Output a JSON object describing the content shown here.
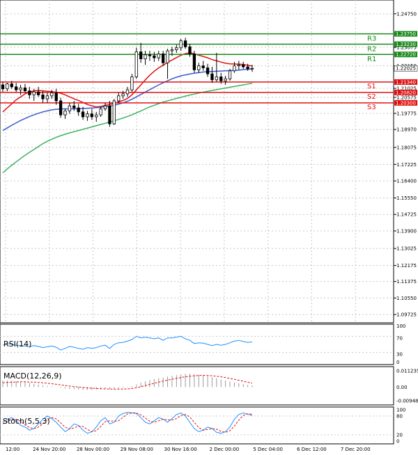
{
  "chart_data": {
    "type": "candlestick",
    "price_axis": {
      "ylim": [
        1.0945,
        1.253
      ],
      "ticks": [
        "1.24750",
        "1.23075",
        "1.22150",
        "1.21025",
        "1.20575",
        "1.19775",
        "1.18970",
        "1.18075",
        "1.17225",
        "1.16400",
        "1.15550",
        "1.14725",
        "1.13900",
        "1.13025",
        "1.12175",
        "1.11375",
        "1.10550",
        "1.09725"
      ],
      "tick_values": [
        1.2475,
        1.23075,
        1.2215,
        1.21025,
        1.20575,
        1.19775,
        1.1897,
        1.18075,
        1.17225,
        1.164,
        1.1555,
        1.14725,
        1.139,
        1.13025,
        1.12175,
        1.11375,
        1.1055,
        1.09725
      ]
    },
    "x_tick_labels": [
      "12:00",
      "24 Nov 20:00",
      "28 Nov 00:00",
      "29 Nov 08:00",
      "30 Nov 16:00",
      "2 Dec 00:00",
      "5 Dec 04:00",
      "6 Dec 12:00",
      "7 Dec 20:00"
    ],
    "levels": [
      {
        "name": "R3",
        "value": 1.2375,
        "tag": "1.23750",
        "kind": "resistance",
        "color": "#1a8a1a"
      },
      {
        "name": "R2",
        "value": 1.2323,
        "tag": "1.23230",
        "kind": "resistance",
        "color": "#1a8a1a"
      },
      {
        "name": "R1",
        "value": 1.2272,
        "tag": "1.22720",
        "kind": "resistance",
        "color": "#1a8a1a"
      },
      {
        "name": "S1",
        "value": 1.2134,
        "tag": "1.21340",
        "kind": "support",
        "color": "#e01010"
      },
      {
        "name": "S2",
        "value": 1.2082,
        "tag": "1.20820",
        "kind": "support",
        "color": "#e01010"
      },
      {
        "name": "S3",
        "value": 1.203,
        "tag": "1.20300",
        "kind": "support",
        "color": "#e01010"
      }
    ],
    "current_price": {
      "value": 1.22025,
      "tag": "1.22025"
    },
    "candles": [
      {
        "o": 1.212,
        "h": 1.2135,
        "l": 1.2085,
        "c": 1.21
      },
      {
        "o": 1.21,
        "h": 1.213,
        "l": 1.2088,
        "c": 1.2125
      },
      {
        "o": 1.2125,
        "h": 1.214,
        "l": 1.21,
        "c": 1.211
      },
      {
        "o": 1.211,
        "h": 1.213,
        "l": 1.2085,
        "c": 1.2095
      },
      {
        "o": 1.2095,
        "h": 1.212,
        "l": 1.207,
        "c": 1.2105
      },
      {
        "o": 1.2105,
        "h": 1.2125,
        "l": 1.208,
        "c": 1.209
      },
      {
        "o": 1.209,
        "h": 1.211,
        "l": 1.205,
        "c": 1.207
      },
      {
        "o": 1.207,
        "h": 1.21,
        "l": 1.204,
        "c": 1.2085
      },
      {
        "o": 1.2085,
        "h": 1.211,
        "l": 1.206,
        "c": 1.207
      },
      {
        "o": 1.207,
        "h": 1.209,
        "l": 1.203,
        "c": 1.205
      },
      {
        "o": 1.205,
        "h": 1.208,
        "l": 1.203,
        "c": 1.2065
      },
      {
        "o": 1.2065,
        "h": 1.2095,
        "l": 1.205,
        "c": 1.208
      },
      {
        "o": 1.208,
        "h": 1.21,
        "l": 1.202,
        "c": 1.204
      },
      {
        "o": 1.204,
        "h": 1.2055,
        "l": 1.1955,
        "c": 1.197
      },
      {
        "o": 1.197,
        "h": 1.2,
        "l": 1.195,
        "c": 1.199
      },
      {
        "o": 1.199,
        "h": 1.203,
        "l": 1.1975,
        "c": 1.2015
      },
      {
        "o": 1.2015,
        "h": 1.204,
        "l": 1.199,
        "c": 1.2005
      },
      {
        "o": 1.2005,
        "h": 1.2025,
        "l": 1.1965,
        "c": 1.1985
      },
      {
        "o": 1.1985,
        "h": 1.201,
        "l": 1.1945,
        "c": 1.196
      },
      {
        "o": 1.196,
        "h": 1.199,
        "l": 1.194,
        "c": 1.1975
      },
      {
        "o": 1.1975,
        "h": 1.2,
        "l": 1.1945,
        "c": 1.196
      },
      {
        "o": 1.196,
        "h": 1.1985,
        "l": 1.1935,
        "c": 1.197
      },
      {
        "o": 1.197,
        "h": 1.201,
        "l": 1.196,
        "c": 1.2
      },
      {
        "o": 1.2,
        "h": 1.203,
        "l": 1.199,
        "c": 1.2015
      },
      {
        "o": 1.2015,
        "h": 1.204,
        "l": 1.191,
        "c": 1.1925
      },
      {
        "o": 1.1925,
        "h": 1.205,
        "l": 1.192,
        "c": 1.204
      },
      {
        "o": 1.204,
        "h": 1.208,
        "l": 1.203,
        "c": 1.2065
      },
      {
        "o": 1.2065,
        "h": 1.209,
        "l": 1.205,
        "c": 1.2075
      },
      {
        "o": 1.2075,
        "h": 1.211,
        "l": 1.206,
        "c": 1.2095
      },
      {
        "o": 1.2095,
        "h": 1.2175,
        "l": 1.2085,
        "c": 1.216
      },
      {
        "o": 1.216,
        "h": 1.2305,
        "l": 1.215,
        "c": 1.2285
      },
      {
        "o": 1.2285,
        "h": 1.233,
        "l": 1.223,
        "c": 1.225
      },
      {
        "o": 1.225,
        "h": 1.229,
        "l": 1.222,
        "c": 1.227
      },
      {
        "o": 1.227,
        "h": 1.229,
        "l": 1.224,
        "c": 1.2265
      },
      {
        "o": 1.2265,
        "h": 1.2285,
        "l": 1.2235,
        "c": 1.2255
      },
      {
        "o": 1.2255,
        "h": 1.229,
        "l": 1.224,
        "c": 1.2275
      },
      {
        "o": 1.2275,
        "h": 1.229,
        "l": 1.2215,
        "c": 1.223
      },
      {
        "o": 1.223,
        "h": 1.23,
        "l": 1.215,
        "c": 1.229
      },
      {
        "o": 1.229,
        "h": 1.231,
        "l": 1.2265,
        "c": 1.2295
      },
      {
        "o": 1.2295,
        "h": 1.232,
        "l": 1.228,
        "c": 1.2305
      },
      {
        "o": 1.2305,
        "h": 1.235,
        "l": 1.229,
        "c": 1.234
      },
      {
        "o": 1.234,
        "h": 1.2355,
        "l": 1.23,
        "c": 1.231
      },
      {
        "o": 1.231,
        "h": 1.2325,
        "l": 1.226,
        "c": 1.2275
      },
      {
        "o": 1.2275,
        "h": 1.229,
        "l": 1.218,
        "c": 1.2195
      },
      {
        "o": 1.2195,
        "h": 1.223,
        "l": 1.218,
        "c": 1.2215
      },
      {
        "o": 1.2215,
        "h": 1.224,
        "l": 1.219,
        "c": 1.2205
      },
      {
        "o": 1.2205,
        "h": 1.2225,
        "l": 1.216,
        "c": 1.2175
      },
      {
        "o": 1.2175,
        "h": 1.221,
        "l": 1.213,
        "c": 1.2145
      },
      {
        "o": 1.2145,
        "h": 1.228,
        "l": 1.2135,
        "c": 1.216
      },
      {
        "o": 1.216,
        "h": 1.218,
        "l": 1.2125,
        "c": 1.214
      },
      {
        "o": 1.214,
        "h": 1.2165,
        "l": 1.212,
        "c": 1.215
      },
      {
        "o": 1.215,
        "h": 1.22,
        "l": 1.214,
        "c": 1.219
      },
      {
        "o": 1.219,
        "h": 1.2235,
        "l": 1.218,
        "c": 1.2215
      },
      {
        "o": 1.2215,
        "h": 1.224,
        "l": 1.2195,
        "c": 1.222
      },
      {
        "o": 1.222,
        "h": 1.2235,
        "l": 1.22,
        "c": 1.221
      },
      {
        "o": 1.221,
        "h": 1.2225,
        "l": 1.219,
        "c": 1.22
      },
      {
        "o": 1.22,
        "h": 1.222,
        "l": 1.2185,
        "c": 1.22025
      }
    ],
    "moving_averages": [
      {
        "color": "#e01010",
        "values": [
          1.1985,
          1.2005,
          1.2025,
          1.2045,
          1.206,
          1.2075,
          1.2085,
          1.209,
          1.2092,
          1.209,
          1.2088,
          1.2086,
          1.2083,
          1.2078,
          1.207,
          1.206,
          1.205,
          1.2042,
          1.2032,
          1.2022,
          1.2015,
          1.201,
          1.2012,
          1.2018,
          1.2022,
          1.2027,
          1.2035,
          1.2042,
          1.2052,
          1.207,
          1.2095,
          1.212,
          1.2145,
          1.2168,
          1.2188,
          1.2205,
          1.2218,
          1.2232,
          1.2244,
          1.2256,
          1.2268,
          1.2276,
          1.228,
          1.2275,
          1.2268,
          1.2262,
          1.2255,
          1.2246,
          1.224,
          1.2234,
          1.2228,
          1.2225,
          1.2224,
          1.2223,
          1.2222,
          1.2218,
          1.2214
        ]
      },
      {
        "color": "#3a5ad0",
        "values": [
          1.1892,
          1.1905,
          1.1918,
          1.193,
          1.1942,
          1.1952,
          1.1962,
          1.197,
          1.1978,
          1.1985,
          1.199,
          1.1995,
          1.1998,
          1.2,
          1.2,
          1.2,
          1.2,
          1.2001,
          1.2002,
          1.2003,
          1.2004,
          1.2006,
          1.2008,
          1.2011,
          1.2014,
          1.2018,
          1.2024,
          1.203,
          1.2038,
          1.2048,
          1.206,
          1.2072,
          1.2084,
          1.2096,
          1.2108,
          1.212,
          1.213,
          1.214,
          1.215,
          1.2158,
          1.2165,
          1.217,
          1.2174,
          1.2178,
          1.2181,
          1.2184,
          1.2186,
          1.2187,
          1.2188,
          1.2189,
          1.219,
          1.2191,
          1.2192,
          1.2194,
          1.2196,
          1.2198,
          1.2199
        ]
      },
      {
        "color": "#3cb060",
        "values": [
          1.168,
          1.17,
          1.1718,
          1.1735,
          1.1752,
          1.1768,
          1.1783,
          1.1797,
          1.1812,
          1.1826,
          1.1838,
          1.1848,
          1.1858,
          1.1866,
          1.1873,
          1.188,
          1.1886,
          1.1892,
          1.1898,
          1.1904,
          1.191,
          1.1916,
          1.1922,
          1.1928,
          1.1934,
          1.194,
          1.1947,
          1.1954,
          1.1962,
          1.197,
          1.198,
          1.199,
          1.2,
          1.201,
          1.2018,
          1.2026,
          1.2034,
          1.204,
          1.2046,
          1.2052,
          1.2058,
          1.2064,
          1.2069,
          1.2074,
          1.2079,
          1.2084,
          1.2088,
          1.2092,
          1.2096,
          1.21,
          1.2104,
          1.2108,
          1.2112,
          1.2116,
          1.212,
          1.2124,
          1.2128
        ]
      }
    ],
    "rsi": {
      "label": "RSI(14)",
      "ticks": [
        "100",
        "70",
        "30",
        "0"
      ],
      "tick_values": [
        100,
        70,
        30,
        0
      ],
      "values": [
        48,
        52,
        50,
        48,
        47,
        46,
        44,
        47,
        45,
        42,
        44,
        46,
        43,
        36,
        40,
        45,
        43,
        40,
        38,
        42,
        40,
        42,
        46,
        48,
        40,
        50,
        54,
        55,
        58,
        62,
        70,
        66,
        68,
        66,
        64,
        66,
        60,
        66,
        66,
        68,
        70,
        64,
        60,
        52,
        54,
        53,
        50,
        47,
        50,
        48,
        50,
        54,
        58,
        60,
        57,
        55,
        56
      ],
      "color": "#1e90ff"
    },
    "macd": {
      "label": "MACD(12,26,9)",
      "ticks": [
        "0.011235",
        "0.00",
        "-0.009486"
      ],
      "tick_values": [
        0.011235,
        0,
        -0.009486
      ],
      "histogram": [
        0.0045,
        0.0044,
        0.0043,
        0.004,
        0.0037,
        0.0033,
        0.0028,
        0.0023,
        0.0018,
        0.0013,
        0.0008,
        0.0004,
        0.0,
        -0.0005,
        -0.001,
        -0.0014,
        -0.0016,
        -0.0018,
        -0.0019,
        -0.002,
        -0.002,
        -0.0019,
        -0.0017,
        -0.0015,
        -0.0014,
        -0.0012,
        -0.0009,
        -0.0006,
        -0.0002,
        0.0006,
        0.0018,
        0.003,
        0.004,
        0.0048,
        0.0055,
        0.0062,
        0.0066,
        0.0072,
        0.0078,
        0.0083,
        0.0088,
        0.0091,
        0.0092,
        0.009,
        0.0086,
        0.0081,
        0.0075,
        0.0068,
        0.0061,
        0.0053,
        0.0045,
        0.0038,
        0.0032,
        0.0026,
        0.002,
        0.0015,
        0.0011
      ],
      "signal": [
        0.003,
        0.0032,
        0.0034,
        0.0035,
        0.0036,
        0.0036,
        0.0035,
        0.0034,
        0.0032,
        0.0029,
        0.0026,
        0.0023,
        0.0019,
        0.0015,
        0.0011,
        0.0007,
        0.0003,
        0.0,
        -0.0003,
        -0.0006,
        -0.0008,
        -0.001,
        -0.0012,
        -0.0013,
        -0.0014,
        -0.0015,
        -0.0015,
        -0.0014,
        -0.0013,
        -0.001,
        -0.0005,
        0.0002,
        0.001,
        0.0018,
        0.0026,
        0.0034,
        0.0041,
        0.0048,
        0.0054,
        0.006,
        0.0066,
        0.0071,
        0.0075,
        0.0078,
        0.008,
        0.0081,
        0.008,
        0.0078,
        0.0075,
        0.0071,
        0.0066,
        0.006,
        0.0054,
        0.0047,
        0.004,
        0.0033,
        0.0027
      ],
      "hist_color": "#9a9a9a",
      "signal_color": "#e01010"
    },
    "stoch": {
      "label": "Stoch(5,5,3)",
      "ticks": [
        "100",
        "80",
        "20",
        "0"
      ],
      "tick_values": [
        100,
        80,
        20,
        0
      ],
      "k": [
        60,
        70,
        75,
        65,
        50,
        45,
        35,
        40,
        55,
        70,
        80,
        72,
        60,
        45,
        30,
        40,
        55,
        50,
        35,
        25,
        30,
        45,
        65,
        75,
        55,
        60,
        80,
        88,
        92,
        90,
        88,
        75,
        60,
        55,
        65,
        75,
        70,
        60,
        72,
        85,
        90,
        80,
        60,
        40,
        30,
        35,
        45,
        40,
        28,
        25,
        30,
        45,
        70,
        85,
        90,
        86,
        82
      ],
      "d": [
        55,
        62,
        70,
        70,
        63,
        52,
        43,
        40,
        45,
        55,
        68,
        75,
        71,
        58,
        45,
        38,
        42,
        48,
        47,
        37,
        30,
        33,
        47,
        62,
        65,
        63,
        65,
        76,
        87,
        90,
        90,
        84,
        74,
        63,
        60,
        65,
        70,
        68,
        67,
        72,
        82,
        85,
        77,
        60,
        43,
        35,
        37,
        40,
        38,
        31,
        28,
        33,
        48,
        67,
        82,
        87,
        86
      ],
      "k_color": "#1e90ff",
      "d_color": "#e01010"
    }
  }
}
